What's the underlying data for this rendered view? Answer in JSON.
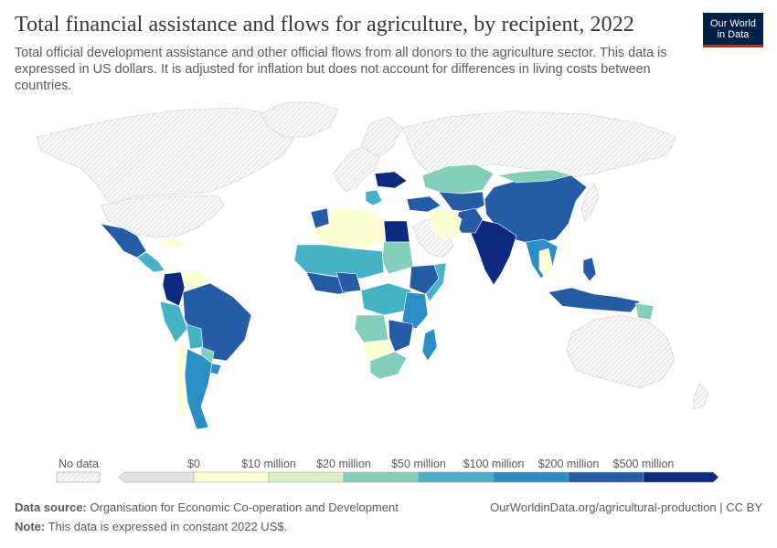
{
  "title": "Total financial assistance and flows for agriculture, by recipient, 2022",
  "subtitle": "Total official development assistance and other official flows from all donors to the agriculture sector. This data is expressed in US dollars. It is adjusted for inflation but does not account for differences in living costs between countries.",
  "logo": {
    "line1": "Our World",
    "line2": "in Data"
  },
  "legend": {
    "no_data_label": "No data",
    "bins": [
      {
        "label": "$0",
        "color": "#e3e3e3"
      },
      {
        "label": "$10 million",
        "color": "#feffd3"
      },
      {
        "label": "$20 million",
        "color": "#d9f0c4"
      },
      {
        "label": "$50 million",
        "color": "#84cebb"
      },
      {
        "label": "$100 million",
        "color": "#45b2c6"
      },
      {
        "label": "$200 million",
        "color": "#2b8fc6"
      },
      {
        "label": "$500 million",
        "color": "#265ba6"
      },
      {
        "label": "",
        "color": "#0d2a80"
      }
    ]
  },
  "footer": {
    "source_label": "Data source:",
    "source_text": "Organisation for Economic Co-operation and Development",
    "note_label": "Note:",
    "note_text": "This data is expressed in constant 2022 US$.",
    "url": "OurWorldinData.org/agricultural-production | CC BY"
  },
  "colors": {
    "no_data": "#f2f2f2",
    "very_dark": "#0d2a80",
    "dark": "#265ba6",
    "mid_blue": "#2b8fc6",
    "teal": "#45b2c6",
    "green_teal": "#84cebb",
    "light_green": "#d9f0c4",
    "pale_yellow": "#feffd3"
  }
}
